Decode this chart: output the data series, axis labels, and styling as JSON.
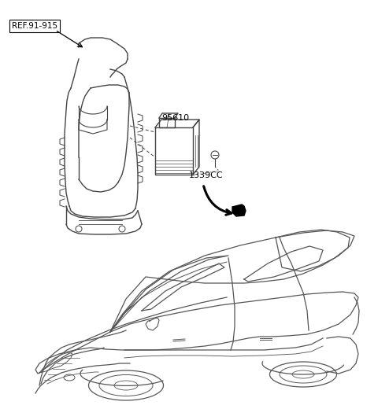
{
  "title": "",
  "background_color": "#ffffff",
  "line_color": "#444444",
  "text_color": "#000000",
  "ref_label": "REF.91-915",
  "part1_label": "95610",
  "part2_label": "1339CC",
  "fig_width": 4.8,
  "fig_height": 5.34,
  "dpi": 100
}
